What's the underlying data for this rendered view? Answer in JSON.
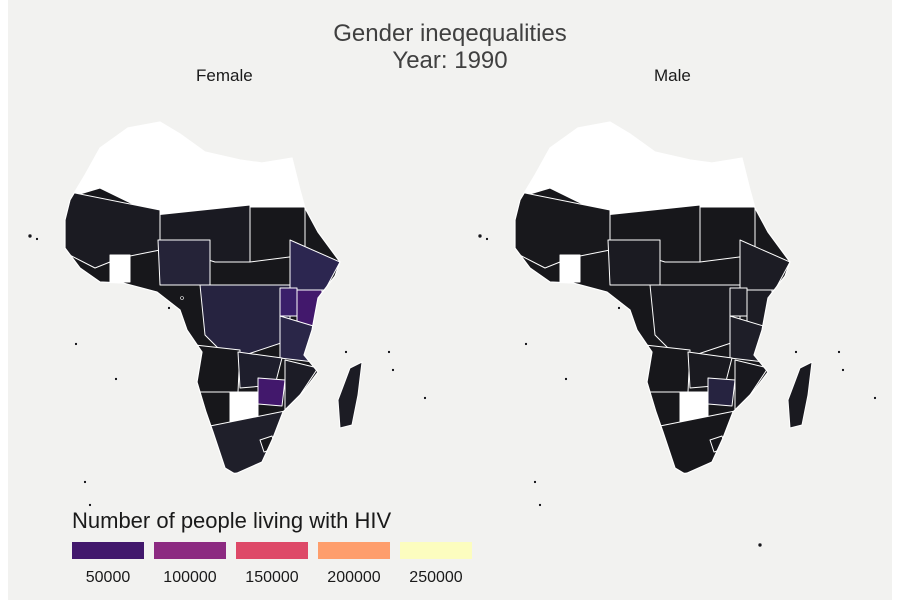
{
  "title_line1": "Gender ineqequalities",
  "title_line2": "Year: 1990",
  "facets": {
    "female": "Female",
    "male": "Male"
  },
  "legend": {
    "title": "Number of people living with HIV",
    "ticks": [
      "50000",
      "100000",
      "150000",
      "200000",
      "250000"
    ],
    "colors": [
      "#42186c",
      "#8c2a81",
      "#de4968",
      "#fe9e6c",
      "#fcfdbf"
    ]
  },
  "colors": {
    "background": "#f2f2f0",
    "na_fill": "#ffffff",
    "low_fill": "#17171b",
    "border": "#ffffff"
  }
}
